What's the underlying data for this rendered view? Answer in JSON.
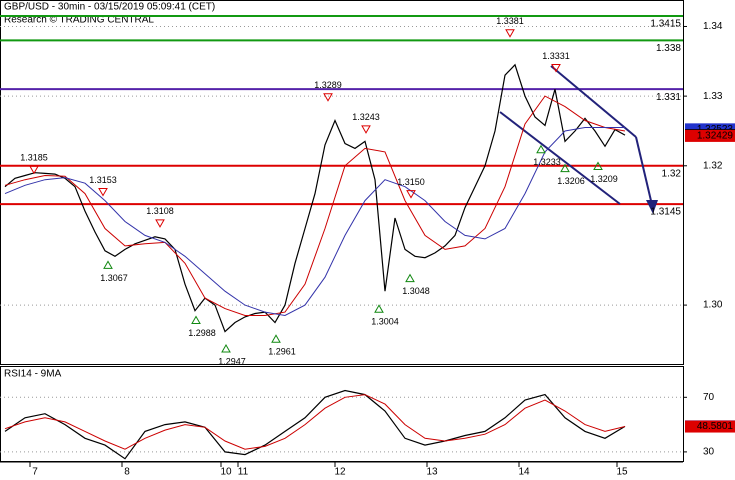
{
  "chart_data": [
    {
      "type": "line",
      "title": "GBP/USD - 30min - 03/15/2019 05:09:41 (CET)",
      "subtitle": "Research © TRADING CENTRAL",
      "ylim": [
        1.2914,
        1.3438
      ],
      "yticks": [
        1.34,
        1.33,
        1.32,
        {
          "value": 1.3,
          "label": "1.30"
        }
      ],
      "grid": true,
      "xtick_labels": [
        "7",
        "8",
        "10",
        "11",
        "12",
        "13",
        "14",
        "15"
      ],
      "series": [
        {
          "color": "#000000",
          "values": [
            1.317,
            1.3182,
            1.3186,
            1.319,
            1.3189,
            1.3188,
            1.3182,
            1.317,
            1.3135,
            1.3105,
            1.3078,
            1.307,
            1.308,
            1.3088,
            1.3093,
            1.3098,
            1.3095,
            1.308,
            1.303,
            1.2992,
            1.301,
            1.3,
            1.2962,
            1.2975,
            1.2983,
            1.2988,
            1.299,
            1.2975,
            1.3,
            1.306,
            1.311,
            1.316,
            1.323,
            1.3265,
            1.3232,
            1.3225,
            1.3235,
            1.318,
            1.302,
            1.3125,
            1.308,
            1.307,
            1.3068,
            1.3075,
            1.3085,
            1.31,
            1.314,
            1.317,
            1.32,
            1.325,
            1.333,
            1.3345,
            1.33,
            1.327,
            1.3258,
            1.331,
            1.3235,
            1.325,
            1.3268,
            1.325,
            1.3228,
            1.3252,
            1.3244
          ]
        },
        {
          "color": "#cc0000",
          "values": [
            1.3172,
            1.318,
            1.3186,
            1.3185,
            1.316,
            1.311,
            1.3085,
            1.3088,
            1.309,
            1.306,
            1.301,
            1.2995,
            1.2985,
            1.2985,
            1.299,
            1.303,
            1.311,
            1.32,
            1.3225,
            1.322,
            1.315,
            1.31,
            1.308,
            1.3085,
            1.311,
            1.317,
            1.326,
            1.33,
            1.3285,
            1.3265,
            1.3255,
            1.325
          ]
        },
        {
          "color": "#3333aa",
          "values": [
            1.316,
            1.3172,
            1.318,
            1.3183,
            1.3175,
            1.315,
            1.312,
            1.31,
            1.309,
            1.307,
            1.3045,
            1.302,
            1.3,
            1.299,
            1.2985,
            1.3,
            1.304,
            1.31,
            1.315,
            1.318,
            1.317,
            1.315,
            1.312,
            1.31,
            1.3095,
            1.311,
            1.316,
            1.322,
            1.325,
            1.3255,
            1.3255,
            1.3255
          ]
        }
      ],
      "levels": [
        1.3415,
        1.338,
        1.331,
        1.32,
        1.3145
      ],
      "level_colors": [
        "#119911",
        "#119911",
        "#5522aa",
        "#dd0000",
        "#dd0000"
      ],
      "price_markers": [
        {
          "value": 1.32523,
          "color": "#2233cc"
        },
        {
          "value": 1.3244,
          "color": "#000000"
        },
        {
          "value": 1.32429,
          "color": "#dd0000"
        }
      ],
      "annotations": [
        {
          "value": 1.3185,
          "kind": "high"
        },
        {
          "value": 1.3153,
          "kind": "high"
        },
        {
          "value": 1.3108,
          "kind": "high"
        },
        {
          "value": 1.3067,
          "kind": "low"
        },
        {
          "value": 1.2988,
          "kind": "low"
        },
        {
          "value": 1.2947,
          "kind": "low"
        },
        {
          "value": 1.2961,
          "kind": "low"
        },
        {
          "value": 1.3289,
          "kind": "high"
        },
        {
          "value": 1.3243,
          "kind": "high"
        },
        {
          "value": 1.3004,
          "kind": "low"
        },
        {
          "value": 1.315,
          "label": "1.3150",
          "kind": "high"
        },
        {
          "value": 1.3048,
          "kind": "low"
        },
        {
          "value": 1.3381,
          "kind": "high"
        },
        {
          "value": 1.3331,
          "kind": "high"
        },
        {
          "value": 1.3233,
          "kind": "low"
        },
        {
          "value": 1.3206,
          "kind": "low"
        },
        {
          "value": 1.3209,
          "kind": "low"
        }
      ]
    },
    {
      "type": "line",
      "title": "RSI14 - 9MA",
      "ylim": [
        22.6,
        92.2
      ],
      "yticks": [
        70,
        30
      ],
      "grid": true,
      "series": [
        {
          "color": "#000000",
          "values": [
            45,
            55,
            58,
            50,
            40,
            35,
            25,
            45,
            50,
            52,
            48,
            30,
            28,
            35,
            45,
            55,
            70,
            75,
            72,
            60,
            40,
            35,
            38,
            42,
            45,
            55,
            68,
            72,
            55,
            45,
            40,
            48.7
          ]
        },
        {
          "color": "#cc0000",
          "values": [
            47,
            52,
            55,
            52,
            45,
            38,
            32,
            40,
            46,
            50,
            48,
            38,
            32,
            34,
            40,
            50,
            62,
            70,
            72,
            65,
            50,
            40,
            38,
            40,
            43,
            50,
            62,
            68,
            60,
            50,
            45,
            48.6
          ]
        }
      ],
      "markers": [
        {
          "value": 48.7151,
          "color": "#2233cc"
        },
        {
          "value": 48.5801,
          "color": "#dd0000"
        }
      ]
    }
  ]
}
